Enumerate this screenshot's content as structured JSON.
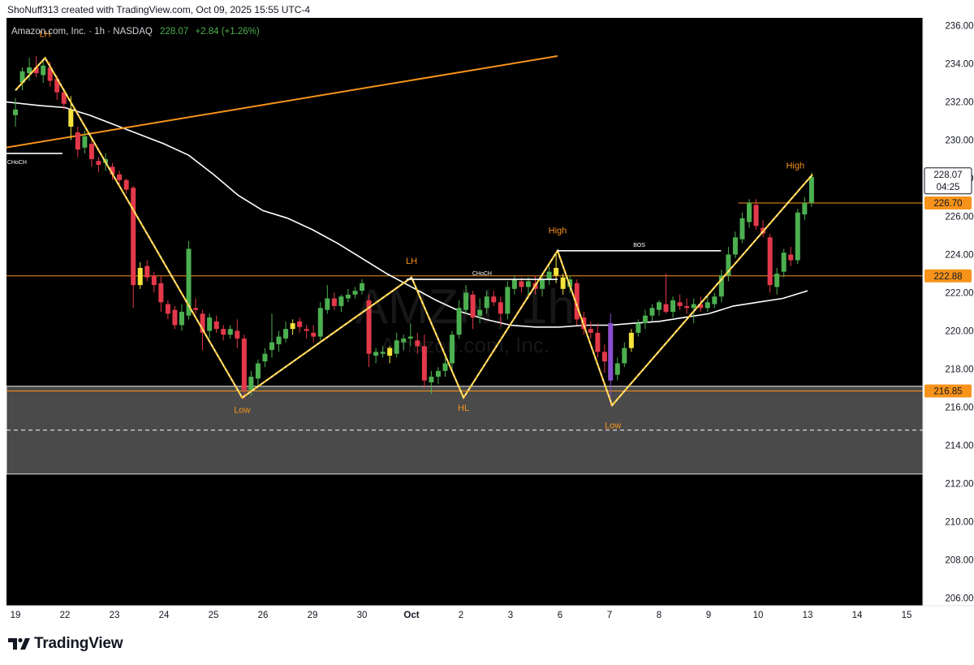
{
  "header": {
    "credit": "ShoNuff313 created with TradingView.com, Oct 09, 2025 15:55 UTC-4"
  },
  "legend": {
    "symbol": "Amazon.com, Inc. · 1h · NASDAQ",
    "last": "228.07",
    "change": "+2.84 (+1.26%)"
  },
  "watermark": {
    "ticker": "AMZN, 1h",
    "name": "Amazon.com, Inc."
  },
  "price_scale": {
    "badges": [
      {
        "value": 228.07,
        "label": "228.07",
        "sub": "04:25",
        "style": "white"
      },
      {
        "value": 226.7,
        "label": "226.70",
        "style": "orange"
      },
      {
        "value": 222.88,
        "label": "222.88",
        "style": "orange"
      },
      {
        "value": 216.85,
        "label": "216.85",
        "style": "orange"
      }
    ]
  },
  "annotations": {
    "labels": [
      {
        "text": "LH",
        "x": 0.6,
        "y": 235.4
      },
      {
        "text": "Low",
        "x": 4.58,
        "y": 215.7
      },
      {
        "text": "LH",
        "x": 8.0,
        "y": 223.5
      },
      {
        "text": "HL",
        "x": 9.05,
        "y": 215.8
      },
      {
        "text": "High",
        "x": 10.95,
        "y": 225.1
      },
      {
        "text": "Low",
        "x": 12.07,
        "y": 214.9
      },
      {
        "text": "High",
        "x": 15.75,
        "y": 228.5
      }
    ],
    "structure": [
      {
        "text": "CHoCH",
        "x1": -0.2,
        "x2": 0.95,
        "y": 229.3
      },
      {
        "text": "CHoCH",
        "x1": 7.9,
        "x2": 10.95,
        "y": 222.7
      },
      {
        "text": "BOS",
        "x1": 10.95,
        "x2": 14.25,
        "y": 224.2
      }
    ]
  },
  "footer": {
    "brand": "TradingView"
  },
  "colors": {
    "background": "#000000",
    "up": "#4caf50",
    "down": "#e3394a",
    "yellow": "#f5e43b",
    "purple": "#8a4fd0",
    "accent": "#f7931a",
    "ma": "#ffffff"
  },
  "chart_data": {
    "type": "candlestick",
    "title": "Amazon.com, Inc. · 1h · NASDAQ",
    "ylim": [
      205.6,
      236.4
    ],
    "y_ticks": [
      206,
      208,
      210,
      212,
      214,
      216,
      218,
      220,
      222,
      224,
      226,
      228,
      230,
      232,
      234,
      236
    ],
    "x_ticks": [
      "19",
      "22",
      "23",
      "24",
      "25",
      "26",
      "29",
      "30",
      "Oct",
      "2",
      "3",
      "6",
      "7",
      "8",
      "9",
      "10",
      "13",
      "14",
      "15"
    ],
    "candles": [
      {
        "t": 0.0,
        "o": 231.3,
        "h": 232.2,
        "l": 230.7,
        "c": 231.6
      },
      {
        "t": 0.14,
        "o": 233.0,
        "h": 233.8,
        "l": 232.6,
        "c": 233.6
      },
      {
        "t": 0.28,
        "o": 233.5,
        "h": 234.3,
        "l": 233.1,
        "c": 233.8
      },
      {
        "t": 0.42,
        "o": 233.8,
        "h": 234.4,
        "l": 233.3,
        "c": 233.5
      },
      {
        "t": 0.56,
        "o": 233.4,
        "h": 234.2,
        "l": 233.0,
        "c": 233.9
      },
      {
        "t": 0.7,
        "o": 233.8,
        "h": 234.1,
        "l": 232.8,
        "c": 233.1
      },
      {
        "t": 0.84,
        "o": 233.2,
        "h": 233.4,
        "l": 232.1,
        "c": 232.5
      },
      {
        "t": 0.98,
        "o": 232.5,
        "h": 232.7,
        "l": 231.6,
        "c": 231.9
      },
      {
        "t": 1.12,
        "o": 231.6,
        "h": 232.3,
        "l": 230.0,
        "c": 230.7
      },
      {
        "t": 1.26,
        "o": 230.4,
        "h": 230.7,
        "l": 229.1,
        "c": 229.5
      },
      {
        "t": 1.4,
        "o": 229.6,
        "h": 230.5,
        "l": 229.3,
        "c": 230.2
      },
      {
        "t": 1.54,
        "o": 229.8,
        "h": 230.0,
        "l": 228.6,
        "c": 229.0
      },
      {
        "t": 1.68,
        "o": 228.9,
        "h": 229.1,
        "l": 228.3,
        "c": 228.7
      },
      {
        "t": 1.82,
        "o": 228.8,
        "h": 229.3,
        "l": 228.4,
        "c": 229.0
      },
      {
        "t": 1.96,
        "o": 228.6,
        "h": 228.8,
        "l": 227.9,
        "c": 228.2
      },
      {
        "t": 2.1,
        "o": 228.2,
        "h": 228.4,
        "l": 227.6,
        "c": 227.9
      },
      {
        "t": 2.24,
        "o": 227.9,
        "h": 228.0,
        "l": 227.2,
        "c": 227.4
      },
      {
        "t": 2.38,
        "o": 227.5,
        "h": 227.6,
        "l": 221.2,
        "c": 222.4
      },
      {
        "t": 2.52,
        "o": 222.4,
        "h": 223.6,
        "l": 222.2,
        "c": 223.3
      },
      {
        "t": 2.66,
        "o": 223.4,
        "h": 223.7,
        "l": 222.6,
        "c": 222.8
      },
      {
        "t": 2.8,
        "o": 222.9,
        "h": 223.1,
        "l": 222.0,
        "c": 222.4
      },
      {
        "t": 2.94,
        "o": 222.5,
        "h": 222.9,
        "l": 221.0,
        "c": 221.5
      },
      {
        "t": 3.08,
        "o": 221.4,
        "h": 221.6,
        "l": 220.6,
        "c": 220.9
      },
      {
        "t": 3.22,
        "o": 221.1,
        "h": 221.3,
        "l": 220.1,
        "c": 220.3
      },
      {
        "t": 3.36,
        "o": 220.3,
        "h": 221.4,
        "l": 220.0,
        "c": 221.0
      },
      {
        "t": 3.5,
        "o": 220.8,
        "h": 224.7,
        "l": 220.6,
        "c": 224.3
      },
      {
        "t": 3.64,
        "o": 221.2,
        "h": 221.7,
        "l": 220.9,
        "c": 221.1
      },
      {
        "t": 3.78,
        "o": 220.9,
        "h": 221.1,
        "l": 219.0,
        "c": 219.9
      },
      {
        "t": 3.92,
        "o": 220.0,
        "h": 220.9,
        "l": 219.6,
        "c": 220.7
      },
      {
        "t": 4.06,
        "o": 220.5,
        "h": 220.8,
        "l": 219.9,
        "c": 220.1
      },
      {
        "t": 4.2,
        "o": 220.1,
        "h": 220.3,
        "l": 219.5,
        "c": 219.8
      },
      {
        "t": 4.34,
        "o": 219.8,
        "h": 220.3,
        "l": 219.6,
        "c": 220.1
      },
      {
        "t": 4.48,
        "o": 220.0,
        "h": 220.6,
        "l": 219.1,
        "c": 219.6
      },
      {
        "t": 4.62,
        "o": 219.6,
        "h": 219.8,
        "l": 216.4,
        "c": 216.9
      },
      {
        "t": 4.76,
        "o": 216.9,
        "h": 217.9,
        "l": 216.6,
        "c": 217.6
      },
      {
        "t": 4.9,
        "o": 217.5,
        "h": 218.5,
        "l": 217.1,
        "c": 218.3
      },
      {
        "t": 5.04,
        "o": 218.4,
        "h": 219.1,
        "l": 218.1,
        "c": 218.8
      },
      {
        "t": 5.18,
        "o": 219.0,
        "h": 220.9,
        "l": 218.6,
        "c": 219.4
      },
      {
        "t": 5.32,
        "o": 219.3,
        "h": 220.0,
        "l": 218.9,
        "c": 219.7
      },
      {
        "t": 5.46,
        "o": 219.6,
        "h": 220.5,
        "l": 219.4,
        "c": 220.1
      },
      {
        "t": 5.6,
        "o": 220.1,
        "h": 220.6,
        "l": 219.8,
        "c": 220.4
      },
      {
        "t": 5.74,
        "o": 220.5,
        "h": 220.7,
        "l": 219.9,
        "c": 220.2
      },
      {
        "t": 5.88,
        "o": 220.1,
        "h": 220.3,
        "l": 219.6,
        "c": 220.0
      },
      {
        "t": 6.02,
        "o": 219.9,
        "h": 220.3,
        "l": 219.4,
        "c": 219.7
      },
      {
        "t": 6.16,
        "o": 219.7,
        "h": 221.5,
        "l": 219.5,
        "c": 221.2
      },
      {
        "t": 6.3,
        "o": 221.1,
        "h": 222.4,
        "l": 220.9,
        "c": 221.7
      },
      {
        "t": 6.44,
        "o": 221.7,
        "h": 222.0,
        "l": 221.1,
        "c": 221.3
      },
      {
        "t": 6.58,
        "o": 221.3,
        "h": 221.9,
        "l": 221.0,
        "c": 221.8
      },
      {
        "t": 6.72,
        "o": 221.7,
        "h": 222.2,
        "l": 221.5,
        "c": 221.9
      },
      {
        "t": 6.86,
        "o": 221.9,
        "h": 222.3,
        "l": 221.7,
        "c": 222.1
      },
      {
        "t": 7.0,
        "o": 222.1,
        "h": 222.7,
        "l": 221.9,
        "c": 222.5
      },
      {
        "t": 7.14,
        "o": 221.6,
        "h": 221.9,
        "l": 218.1,
        "c": 218.8
      },
      {
        "t": 7.28,
        "o": 218.7,
        "h": 219.1,
        "l": 218.3,
        "c": 218.9
      },
      {
        "t": 7.42,
        "o": 218.8,
        "h": 219.2,
        "l": 218.6,
        "c": 218.9
      },
      {
        "t": 7.56,
        "o": 218.7,
        "h": 219.2,
        "l": 218.3,
        "c": 219.1
      },
      {
        "t": 7.7,
        "o": 218.8,
        "h": 219.9,
        "l": 218.6,
        "c": 219.5
      },
      {
        "t": 7.84,
        "o": 219.4,
        "h": 219.8,
        "l": 219.0,
        "c": 219.6
      },
      {
        "t": 7.98,
        "o": 219.6,
        "h": 220.4,
        "l": 219.2,
        "c": 219.7
      },
      {
        "t": 8.12,
        "o": 219.5,
        "h": 219.9,
        "l": 218.8,
        "c": 219.2
      },
      {
        "t": 8.26,
        "o": 219.2,
        "h": 219.8,
        "l": 217.0,
        "c": 217.4
      },
      {
        "t": 8.4,
        "o": 217.3,
        "h": 217.9,
        "l": 216.7,
        "c": 217.6
      },
      {
        "t": 8.54,
        "o": 217.6,
        "h": 218.1,
        "l": 217.2,
        "c": 217.9
      },
      {
        "t": 8.68,
        "o": 217.9,
        "h": 218.6,
        "l": 217.6,
        "c": 218.3
      },
      {
        "t": 8.82,
        "o": 218.3,
        "h": 220.0,
        "l": 218.0,
        "c": 219.8
      },
      {
        "t": 8.96,
        "o": 219.8,
        "h": 221.6,
        "l": 219.6,
        "c": 221.2
      },
      {
        "t": 9.1,
        "o": 221.1,
        "h": 222.4,
        "l": 220.9,
        "c": 222.0
      },
      {
        "t": 9.24,
        "o": 221.9,
        "h": 222.1,
        "l": 220.1,
        "c": 220.7
      },
      {
        "t": 9.38,
        "o": 220.8,
        "h": 221.7,
        "l": 220.4,
        "c": 221.1
      },
      {
        "t": 9.52,
        "o": 221.2,
        "h": 222.1,
        "l": 220.9,
        "c": 221.8
      },
      {
        "t": 9.66,
        "o": 221.8,
        "h": 222.1,
        "l": 221.3,
        "c": 221.5
      },
      {
        "t": 9.8,
        "o": 221.5,
        "h": 221.8,
        "l": 220.3,
        "c": 220.9
      },
      {
        "t": 9.94,
        "o": 220.9,
        "h": 222.6,
        "l": 220.6,
        "c": 222.3
      },
      {
        "t": 10.08,
        "o": 222.2,
        "h": 222.9,
        "l": 221.9,
        "c": 222.7
      },
      {
        "t": 10.22,
        "o": 222.6,
        "h": 222.8,
        "l": 222.0,
        "c": 222.3
      },
      {
        "t": 10.36,
        "o": 222.3,
        "h": 222.8,
        "l": 221.7,
        "c": 222.6
      },
      {
        "t": 10.5,
        "o": 222.5,
        "h": 222.9,
        "l": 221.9,
        "c": 222.2
      },
      {
        "t": 10.64,
        "o": 222.2,
        "h": 223.0,
        "l": 221.8,
        "c": 222.7
      },
      {
        "t": 10.78,
        "o": 222.7,
        "h": 223.4,
        "l": 222.4,
        "c": 223.1
      },
      {
        "t": 10.92,
        "o": 223.3,
        "h": 224.1,
        "l": 222.5,
        "c": 222.9
      },
      {
        "t": 11.06,
        "o": 222.8,
        "h": 223.0,
        "l": 221.9,
        "c": 222.2
      },
      {
        "t": 11.2,
        "o": 222.3,
        "h": 222.9,
        "l": 222.0,
        "c": 222.7
      },
      {
        "t": 11.34,
        "o": 222.5,
        "h": 222.7,
        "l": 220.3,
        "c": 220.6
      },
      {
        "t": 11.48,
        "o": 220.7,
        "h": 221.0,
        "l": 219.8,
        "c": 220.1
      },
      {
        "t": 11.62,
        "o": 220.1,
        "h": 220.5,
        "l": 219.6,
        "c": 219.9
      },
      {
        "t": 11.76,
        "o": 219.9,
        "h": 220.4,
        "l": 218.6,
        "c": 218.9
      },
      {
        "t": 11.9,
        "o": 218.9,
        "h": 219.3,
        "l": 217.8,
        "c": 218.4
      },
      {
        "t": 12.02,
        "o": 217.4,
        "h": 220.9,
        "l": 216.1,
        "c": 220.4
      },
      {
        "t": 12.16,
        "o": 217.7,
        "h": 218.6,
        "l": 217.4,
        "c": 218.3
      },
      {
        "t": 12.3,
        "o": 218.3,
        "h": 219.4,
        "l": 218.1,
        "c": 219.1
      },
      {
        "t": 12.44,
        "o": 219.1,
        "h": 220.1,
        "l": 218.9,
        "c": 219.9
      },
      {
        "t": 12.58,
        "o": 219.9,
        "h": 220.6,
        "l": 219.7,
        "c": 220.4
      },
      {
        "t": 12.72,
        "o": 220.4,
        "h": 221.1,
        "l": 220.1,
        "c": 220.8
      },
      {
        "t": 12.86,
        "o": 220.8,
        "h": 221.4,
        "l": 220.5,
        "c": 221.2
      },
      {
        "t": 13.0,
        "o": 221.1,
        "h": 221.6,
        "l": 220.8,
        "c": 221.5
      },
      {
        "t": 13.14,
        "o": 221.4,
        "h": 223.0,
        "l": 220.9,
        "c": 221.0
      },
      {
        "t": 13.28,
        "o": 221.0,
        "h": 221.8,
        "l": 220.7,
        "c": 221.6
      },
      {
        "t": 13.42,
        "o": 221.5,
        "h": 221.9,
        "l": 221.1,
        "c": 221.3
      },
      {
        "t": 13.56,
        "o": 221.3,
        "h": 221.7,
        "l": 220.9,
        "c": 221.2
      },
      {
        "t": 13.7,
        "o": 221.2,
        "h": 221.7,
        "l": 220.4,
        "c": 221.4
      },
      {
        "t": 13.84,
        "o": 221.4,
        "h": 221.8,
        "l": 221.0,
        "c": 221.2
      },
      {
        "t": 13.98,
        "o": 221.2,
        "h": 221.9,
        "l": 221.0,
        "c": 221.5
      },
      {
        "t": 14.12,
        "o": 221.4,
        "h": 222.0,
        "l": 221.2,
        "c": 221.8
      },
      {
        "t": 14.26,
        "o": 221.8,
        "h": 223.2,
        "l": 221.5,
        "c": 222.9
      },
      {
        "t": 14.4,
        "o": 222.9,
        "h": 224.4,
        "l": 222.6,
        "c": 224.0
      },
      {
        "t": 14.54,
        "o": 224.0,
        "h": 225.2,
        "l": 223.8,
        "c": 224.9
      },
      {
        "t": 14.68,
        "o": 224.8,
        "h": 226.2,
        "l": 224.6,
        "c": 225.9
      },
      {
        "t": 14.82,
        "o": 225.7,
        "h": 226.9,
        "l": 225.4,
        "c": 226.7
      },
      {
        "t": 14.96,
        "o": 226.6,
        "h": 226.9,
        "l": 225.3,
        "c": 225.5
      },
      {
        "t": 15.1,
        "o": 225.4,
        "h": 225.8,
        "l": 224.9,
        "c": 225.1
      },
      {
        "t": 15.24,
        "o": 224.9,
        "h": 225.1,
        "l": 222.0,
        "c": 222.4
      },
      {
        "t": 15.38,
        "o": 222.3,
        "h": 223.3,
        "l": 221.9,
        "c": 223.0
      },
      {
        "t": 15.52,
        "o": 223.1,
        "h": 224.3,
        "l": 222.8,
        "c": 224.1
      },
      {
        "t": 15.66,
        "o": 224.0,
        "h": 224.4,
        "l": 223.4,
        "c": 223.7
      },
      {
        "t": 15.8,
        "o": 223.7,
        "h": 226.4,
        "l": 223.5,
        "c": 226.2
      },
      {
        "t": 15.94,
        "o": 226.1,
        "h": 227.0,
        "l": 225.8,
        "c": 226.7
      },
      {
        "t": 16.08,
        "o": 226.7,
        "h": 228.3,
        "l": 226.5,
        "c": 228.07
      }
    ],
    "moving_average": [
      [
        -0.2,
        232.0
      ],
      [
        0.5,
        231.8
      ],
      [
        1.0,
        231.7
      ],
      [
        1.5,
        231.3
      ],
      [
        2.0,
        230.8
      ],
      [
        2.5,
        230.3
      ],
      [
        3.0,
        229.8
      ],
      [
        3.5,
        229.2
      ],
      [
        4.0,
        228.2
      ],
      [
        4.5,
        227.1
      ],
      [
        5.0,
        226.3
      ],
      [
        5.5,
        225.9
      ],
      [
        6.0,
        225.3
      ],
      [
        6.5,
        224.6
      ],
      [
        7.0,
        223.8
      ],
      [
        7.5,
        223.0
      ],
      [
        8.0,
        222.3
      ],
      [
        8.5,
        221.6
      ],
      [
        9.0,
        221.0
      ],
      [
        9.5,
        220.6
      ],
      [
        10.0,
        220.3
      ],
      [
        10.5,
        220.2
      ],
      [
        11.0,
        220.2
      ],
      [
        11.5,
        220.3
      ],
      [
        12.0,
        220.3
      ],
      [
        12.5,
        220.4
      ],
      [
        13.0,
        220.5
      ],
      [
        13.5,
        220.7
      ],
      [
        14.0,
        220.9
      ],
      [
        14.5,
        221.3
      ],
      [
        15.0,
        221.5
      ],
      [
        15.5,
        221.7
      ],
      [
        16.0,
        222.1
      ]
    ],
    "zigzag": [
      [
        0.0,
        232.6
      ],
      [
        0.6,
        234.3
      ],
      [
        4.58,
        216.5
      ],
      [
        8.0,
        222.8
      ],
      [
        9.05,
        216.5
      ],
      [
        10.95,
        224.2
      ],
      [
        12.05,
        216.1
      ],
      [
        16.1,
        228.2
      ]
    ],
    "trendline": [
      [
        -0.2,
        229.6
      ],
      [
        10.95,
        234.4
      ]
    ],
    "demand_zone": {
      "from": 212.5,
      "to": 217.1,
      "midline": 214.8
    },
    "levels": [
      226.7,
      222.88,
      216.85
    ]
  }
}
